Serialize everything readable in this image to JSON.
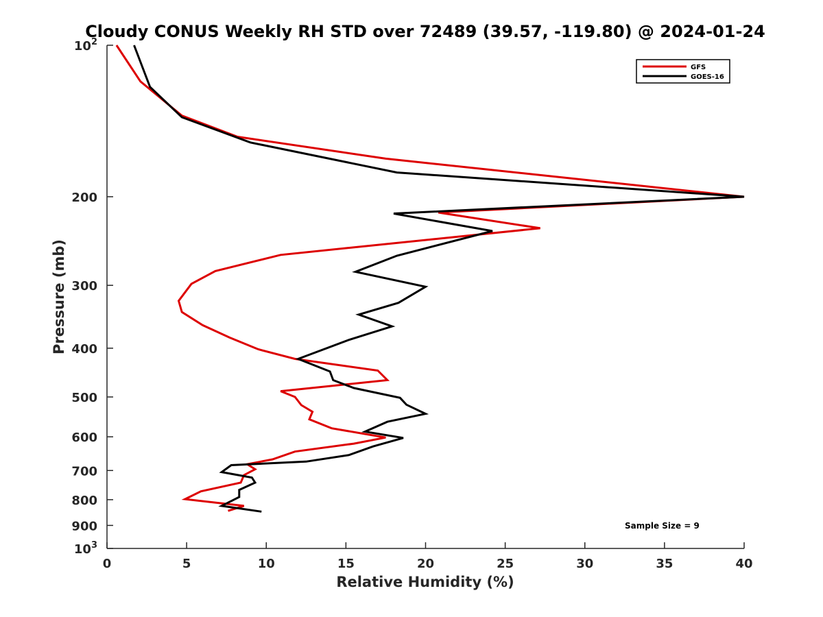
{
  "chart_data": {
    "type": "line",
    "title": "Cloudy CONUS Weekly RH STD over 72489 (39.57, -119.80) @ 2024-01-24",
    "xlabel": "Relative Humidity (%)",
    "ylabel": "Pressure (mb)",
    "xlim": [
      0,
      40
    ],
    "ylim": [
      100,
      1000
    ],
    "y_scale": "log",
    "y_reversed": true,
    "grid": false,
    "legend_position": "top-right",
    "x_ticks": [
      "0",
      "5",
      "10",
      "15",
      "20",
      "25",
      "30",
      "35",
      "40"
    ],
    "y_ticks": [
      {
        "value": 100,
        "label": "10",
        "sup": "2"
      },
      {
        "value": 200,
        "label": "200",
        "sup": ""
      },
      {
        "value": 300,
        "label": "300",
        "sup": ""
      },
      {
        "value": 400,
        "label": "400",
        "sup": ""
      },
      {
        "value": 500,
        "label": "500",
        "sup": ""
      },
      {
        "value": 600,
        "label": "600",
        "sup": ""
      },
      {
        "value": 700,
        "label": "700",
        "sup": ""
      },
      {
        "value": 800,
        "label": "800",
        "sup": ""
      },
      {
        "value": 900,
        "label": "900",
        "sup": ""
      },
      {
        "value": 1000,
        "label": "10",
        "sup": "3"
      }
    ],
    "annotation": "Sample Size = 9",
    "series": [
      {
        "name": "GFS",
        "color": "#dd0000",
        "points": [
          [
            0.6,
            100
          ],
          [
            2.1,
            118
          ],
          [
            4.7,
            138
          ],
          [
            8.2,
            152
          ],
          [
            17.5,
            168
          ],
          [
            40.0,
            200
          ],
          [
            20.8,
            215
          ],
          [
            27.2,
            231
          ],
          [
            10.9,
            261
          ],
          [
            6.8,
            281
          ],
          [
            5.3,
            298
          ],
          [
            4.5,
            322
          ],
          [
            4.7,
            339
          ],
          [
            6.0,
            360
          ],
          [
            7.7,
            381
          ],
          [
            9.5,
            402
          ],
          [
            11.8,
            420
          ],
          [
            17.0,
            443
          ],
          [
            17.6,
            463
          ],
          [
            10.9,
            487
          ],
          [
            11.8,
            500
          ],
          [
            12.2,
            519
          ],
          [
            12.9,
            535
          ],
          [
            12.7,
            554
          ],
          [
            14.1,
            577
          ],
          [
            17.5,
            602
          ],
          [
            15.5,
            619
          ],
          [
            11.8,
            642
          ],
          [
            10.4,
            665
          ],
          [
            8.8,
            680
          ],
          [
            9.3,
            696
          ],
          [
            8.6,
            715
          ],
          [
            8.4,
            740
          ],
          [
            5.9,
            770
          ],
          [
            4.9,
            798
          ],
          [
            8.6,
            823
          ],
          [
            7.6,
            842
          ]
        ]
      },
      {
        "name": "GOES-16",
        "color": "#000000",
        "points": [
          [
            1.7,
            100
          ],
          [
            2.7,
            121
          ],
          [
            4.7,
            139
          ],
          [
            9.0,
            156
          ],
          [
            18.2,
            179
          ],
          [
            40.0,
            200
          ],
          [
            18.0,
            216
          ],
          [
            24.2,
            234
          ],
          [
            18.2,
            262
          ],
          [
            15.6,
            282
          ],
          [
            20.0,
            302
          ],
          [
            18.3,
            325
          ],
          [
            15.8,
            343
          ],
          [
            17.9,
            362
          ],
          [
            15.2,
            385
          ],
          [
            12.0,
            420
          ],
          [
            14.0,
            445
          ],
          [
            14.2,
            463
          ],
          [
            15.5,
            480
          ],
          [
            18.4,
            502
          ],
          [
            18.8,
            518
          ],
          [
            20.0,
            540
          ],
          [
            17.6,
            560
          ],
          [
            16.2,
            586
          ],
          [
            18.6,
            603
          ],
          [
            16.7,
            627
          ],
          [
            15.2,
            652
          ],
          [
            12.5,
            672
          ],
          [
            7.8,
            683
          ],
          [
            7.2,
            705
          ],
          [
            9.1,
            723
          ],
          [
            9.3,
            740
          ],
          [
            8.3,
            765
          ],
          [
            8.3,
            790
          ],
          [
            7.2,
            823
          ],
          [
            9.7,
            845
          ]
        ]
      }
    ]
  }
}
